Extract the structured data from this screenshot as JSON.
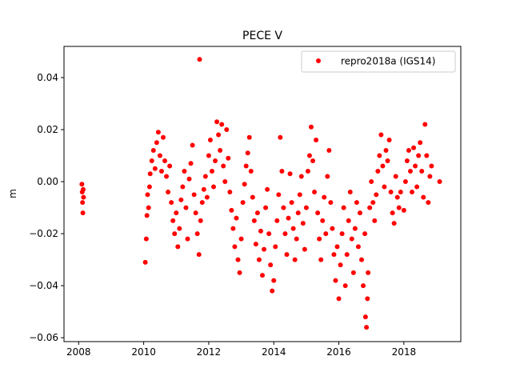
{
  "chart_data": {
    "type": "scatter",
    "title": "PECE V",
    "xlabel": "",
    "ylabel": "m",
    "xlim": [
      2007.55,
      2019.75
    ],
    "ylim": [
      -0.0615,
      0.052
    ],
    "xticks": [
      2008,
      2010,
      2012,
      2014,
      2016,
      2018
    ],
    "xtick_labels": [
      "2008",
      "2010",
      "2012",
      "2014",
      "2016",
      "2018"
    ],
    "yticks": [
      -0.06,
      -0.04,
      -0.02,
      0.0,
      0.02,
      0.04
    ],
    "ytick_labels": [
      "−0.06",
      "−0.04",
      "−0.02",
      "0.00",
      "0.02",
      "0.04"
    ],
    "grid": false,
    "legend_position": "top-right",
    "series": [
      {
        "name": "repro2018a (IGS14)",
        "color": "#ff0000",
        "marker": "circle",
        "points": [
          [
            2008.1,
            -0.001
          ],
          [
            2008.11,
            -0.004
          ],
          [
            2008.12,
            -0.008
          ],
          [
            2008.13,
            -0.012
          ],
          [
            2008.14,
            -0.003
          ],
          [
            2008.15,
            -0.006
          ],
          [
            2010.05,
            -0.031
          ],
          [
            2010.08,
            -0.022
          ],
          [
            2010.1,
            -0.013
          ],
          [
            2010.12,
            -0.005
          ],
          [
            2010.15,
            -0.01
          ],
          [
            2010.18,
            -0.002
          ],
          [
            2010.2,
            0.003
          ],
          [
            2010.25,
            0.008
          ],
          [
            2010.3,
            0.012
          ],
          [
            2010.35,
            0.005
          ],
          [
            2010.4,
            0.015
          ],
          [
            2010.45,
            0.019
          ],
          [
            2010.5,
            0.01
          ],
          [
            2010.55,
            0.004
          ],
          [
            2010.6,
            0.017
          ],
          [
            2010.65,
            0.008
          ],
          [
            2010.7,
            0.002
          ],
          [
            2010.75,
            -0.004
          ],
          [
            2010.8,
            0.006
          ],
          [
            2010.85,
            -0.008
          ],
          [
            2010.9,
            -0.015
          ],
          [
            2010.95,
            -0.02
          ],
          [
            2011.0,
            -0.012
          ],
          [
            2011.05,
            -0.025
          ],
          [
            2011.1,
            -0.018
          ],
          [
            2011.15,
            -0.007
          ],
          [
            2011.2,
            -0.002
          ],
          [
            2011.25,
            0.004
          ],
          [
            2011.3,
            -0.01
          ],
          [
            2011.35,
            -0.022
          ],
          [
            2011.4,
            0.001
          ],
          [
            2011.45,
            0.007
          ],
          [
            2011.5,
            0.014
          ],
          [
            2011.55,
            -0.005
          ],
          [
            2011.6,
            -0.012
          ],
          [
            2011.65,
            -0.02
          ],
          [
            2011.7,
            -0.028
          ],
          [
            2011.72,
            0.047
          ],
          [
            2011.75,
            -0.015
          ],
          [
            2011.8,
            -0.008
          ],
          [
            2011.85,
            -0.003
          ],
          [
            2011.9,
            0.002
          ],
          [
            2011.95,
            -0.006
          ],
          [
            2012.0,
            0.01
          ],
          [
            2012.05,
            0.016
          ],
          [
            2012.1,
            0.004
          ],
          [
            2012.15,
            -0.002
          ],
          [
            2012.2,
            0.008
          ],
          [
            2012.25,
            0.023
          ],
          [
            2012.3,
            0.018
          ],
          [
            2012.35,
            0.012
          ],
          [
            2012.4,
            0.022
          ],
          [
            2012.45,
            0.006
          ],
          [
            2012.5,
            0.0
          ],
          [
            2012.55,
            0.02
          ],
          [
            2012.6,
            0.009
          ],
          [
            2012.65,
            -0.004
          ],
          [
            2012.7,
            -0.011
          ],
          [
            2012.75,
            -0.018
          ],
          [
            2012.8,
            -0.025
          ],
          [
            2012.85,
            -0.014
          ],
          [
            2012.9,
            -0.03
          ],
          [
            2012.95,
            -0.035
          ],
          [
            2013.0,
            -0.022
          ],
          [
            2013.05,
            -0.008
          ],
          [
            2013.1,
            -0.001
          ],
          [
            2013.15,
            0.006
          ],
          [
            2013.2,
            0.011
          ],
          [
            2013.25,
            0.017
          ],
          [
            2013.3,
            0.004
          ],
          [
            2013.35,
            -0.006
          ],
          [
            2013.4,
            -0.015
          ],
          [
            2013.45,
            -0.024
          ],
          [
            2013.5,
            -0.012
          ],
          [
            2013.55,
            -0.03
          ],
          [
            2013.6,
            -0.019
          ],
          [
            2013.65,
            -0.036
          ],
          [
            2013.7,
            -0.026
          ],
          [
            2013.75,
            -0.01
          ],
          [
            2013.8,
            -0.003
          ],
          [
            2013.85,
            -0.02
          ],
          [
            2013.9,
            -0.032
          ],
          [
            2013.95,
            -0.042
          ],
          [
            2014.0,
            -0.038
          ],
          [
            2014.05,
            -0.025
          ],
          [
            2014.1,
            -0.015
          ],
          [
            2014.15,
            -0.005
          ],
          [
            2014.2,
            0.017
          ],
          [
            2014.25,
            0.004
          ],
          [
            2014.3,
            -0.01
          ],
          [
            2014.35,
            -0.02
          ],
          [
            2014.4,
            -0.028
          ],
          [
            2014.45,
            -0.014
          ],
          [
            2014.5,
            0.003
          ],
          [
            2014.55,
            -0.008
          ],
          [
            2014.6,
            -0.018
          ],
          [
            2014.65,
            -0.03
          ],
          [
            2014.7,
            -0.022
          ],
          [
            2014.75,
            -0.012
          ],
          [
            2014.8,
            -0.005
          ],
          [
            2014.85,
            0.002
          ],
          [
            2014.9,
            -0.016
          ],
          [
            2014.95,
            -0.026
          ],
          [
            2015.0,
            -0.01
          ],
          [
            2015.05,
            0.004
          ],
          [
            2015.1,
            0.01
          ],
          [
            2015.15,
            0.021
          ],
          [
            2015.2,
            0.008
          ],
          [
            2015.25,
            -0.004
          ],
          [
            2015.3,
            0.016
          ],
          [
            2015.35,
            -0.012
          ],
          [
            2015.4,
            -0.022
          ],
          [
            2015.45,
            -0.03
          ],
          [
            2015.5,
            -0.015
          ],
          [
            2015.55,
            -0.006
          ],
          [
            2015.6,
            -0.02
          ],
          [
            2015.65,
            0.002
          ],
          [
            2015.7,
            0.012
          ],
          [
            2015.75,
            -0.008
          ],
          [
            2015.8,
            -0.018
          ],
          [
            2015.85,
            -0.028
          ],
          [
            2015.9,
            -0.038
          ],
          [
            2015.95,
            -0.025
          ],
          [
            2016.0,
            -0.045
          ],
          [
            2016.05,
            -0.032
          ],
          [
            2016.1,
            -0.02
          ],
          [
            2016.15,
            -0.01
          ],
          [
            2016.2,
            -0.04
          ],
          [
            2016.25,
            -0.028
          ],
          [
            2016.3,
            -0.015
          ],
          [
            2016.35,
            -0.004
          ],
          [
            2016.4,
            -0.022
          ],
          [
            2016.45,
            -0.035
          ],
          [
            2016.5,
            -0.018
          ],
          [
            2016.55,
            -0.008
          ],
          [
            2016.6,
            -0.025
          ],
          [
            2016.65,
            -0.012
          ],
          [
            2016.7,
            -0.03
          ],
          [
            2016.75,
            -0.04
          ],
          [
            2016.8,
            -0.02
          ],
          [
            2016.82,
            -0.052
          ],
          [
            2016.85,
            -0.056
          ],
          [
            2016.88,
            -0.045
          ],
          [
            2016.9,
            -0.035
          ],
          [
            2016.95,
            -0.01
          ],
          [
            2017.0,
            0.0
          ],
          [
            2017.05,
            -0.008
          ],
          [
            2017.1,
            -0.015
          ],
          [
            2017.15,
            -0.005
          ],
          [
            2017.2,
            0.004
          ],
          [
            2017.25,
            0.01
          ],
          [
            2017.3,
            0.018
          ],
          [
            2017.35,
            0.006
          ],
          [
            2017.4,
            -0.002
          ],
          [
            2017.45,
            0.012
          ],
          [
            2017.5,
            0.008
          ],
          [
            2017.55,
            0.016
          ],
          [
            2017.6,
            -0.004
          ],
          [
            2017.65,
            -0.012
          ],
          [
            2017.7,
            -0.016
          ],
          [
            2017.75,
            0.002
          ],
          [
            2017.8,
            -0.006
          ],
          [
            2017.85,
            -0.01
          ],
          [
            2017.9,
            -0.004
          ],
          [
            2018.0,
            -0.011
          ],
          [
            2018.05,
            0.0
          ],
          [
            2018.1,
            0.008
          ],
          [
            2018.15,
            0.012
          ],
          [
            2018.2,
            0.004
          ],
          [
            2018.25,
            -0.004
          ],
          [
            2018.3,
            0.013
          ],
          [
            2018.35,
            0.006
          ],
          [
            2018.4,
            -0.002
          ],
          [
            2018.45,
            0.01
          ],
          [
            2018.5,
            0.015
          ],
          [
            2018.55,
            0.004
          ],
          [
            2018.6,
            -0.006
          ],
          [
            2018.65,
            0.022
          ],
          [
            2018.7,
            0.01
          ],
          [
            2018.75,
            -0.008
          ],
          [
            2018.8,
            0.002
          ],
          [
            2018.85,
            0.006
          ],
          [
            2019.1,
            0.0
          ]
        ]
      }
    ]
  }
}
